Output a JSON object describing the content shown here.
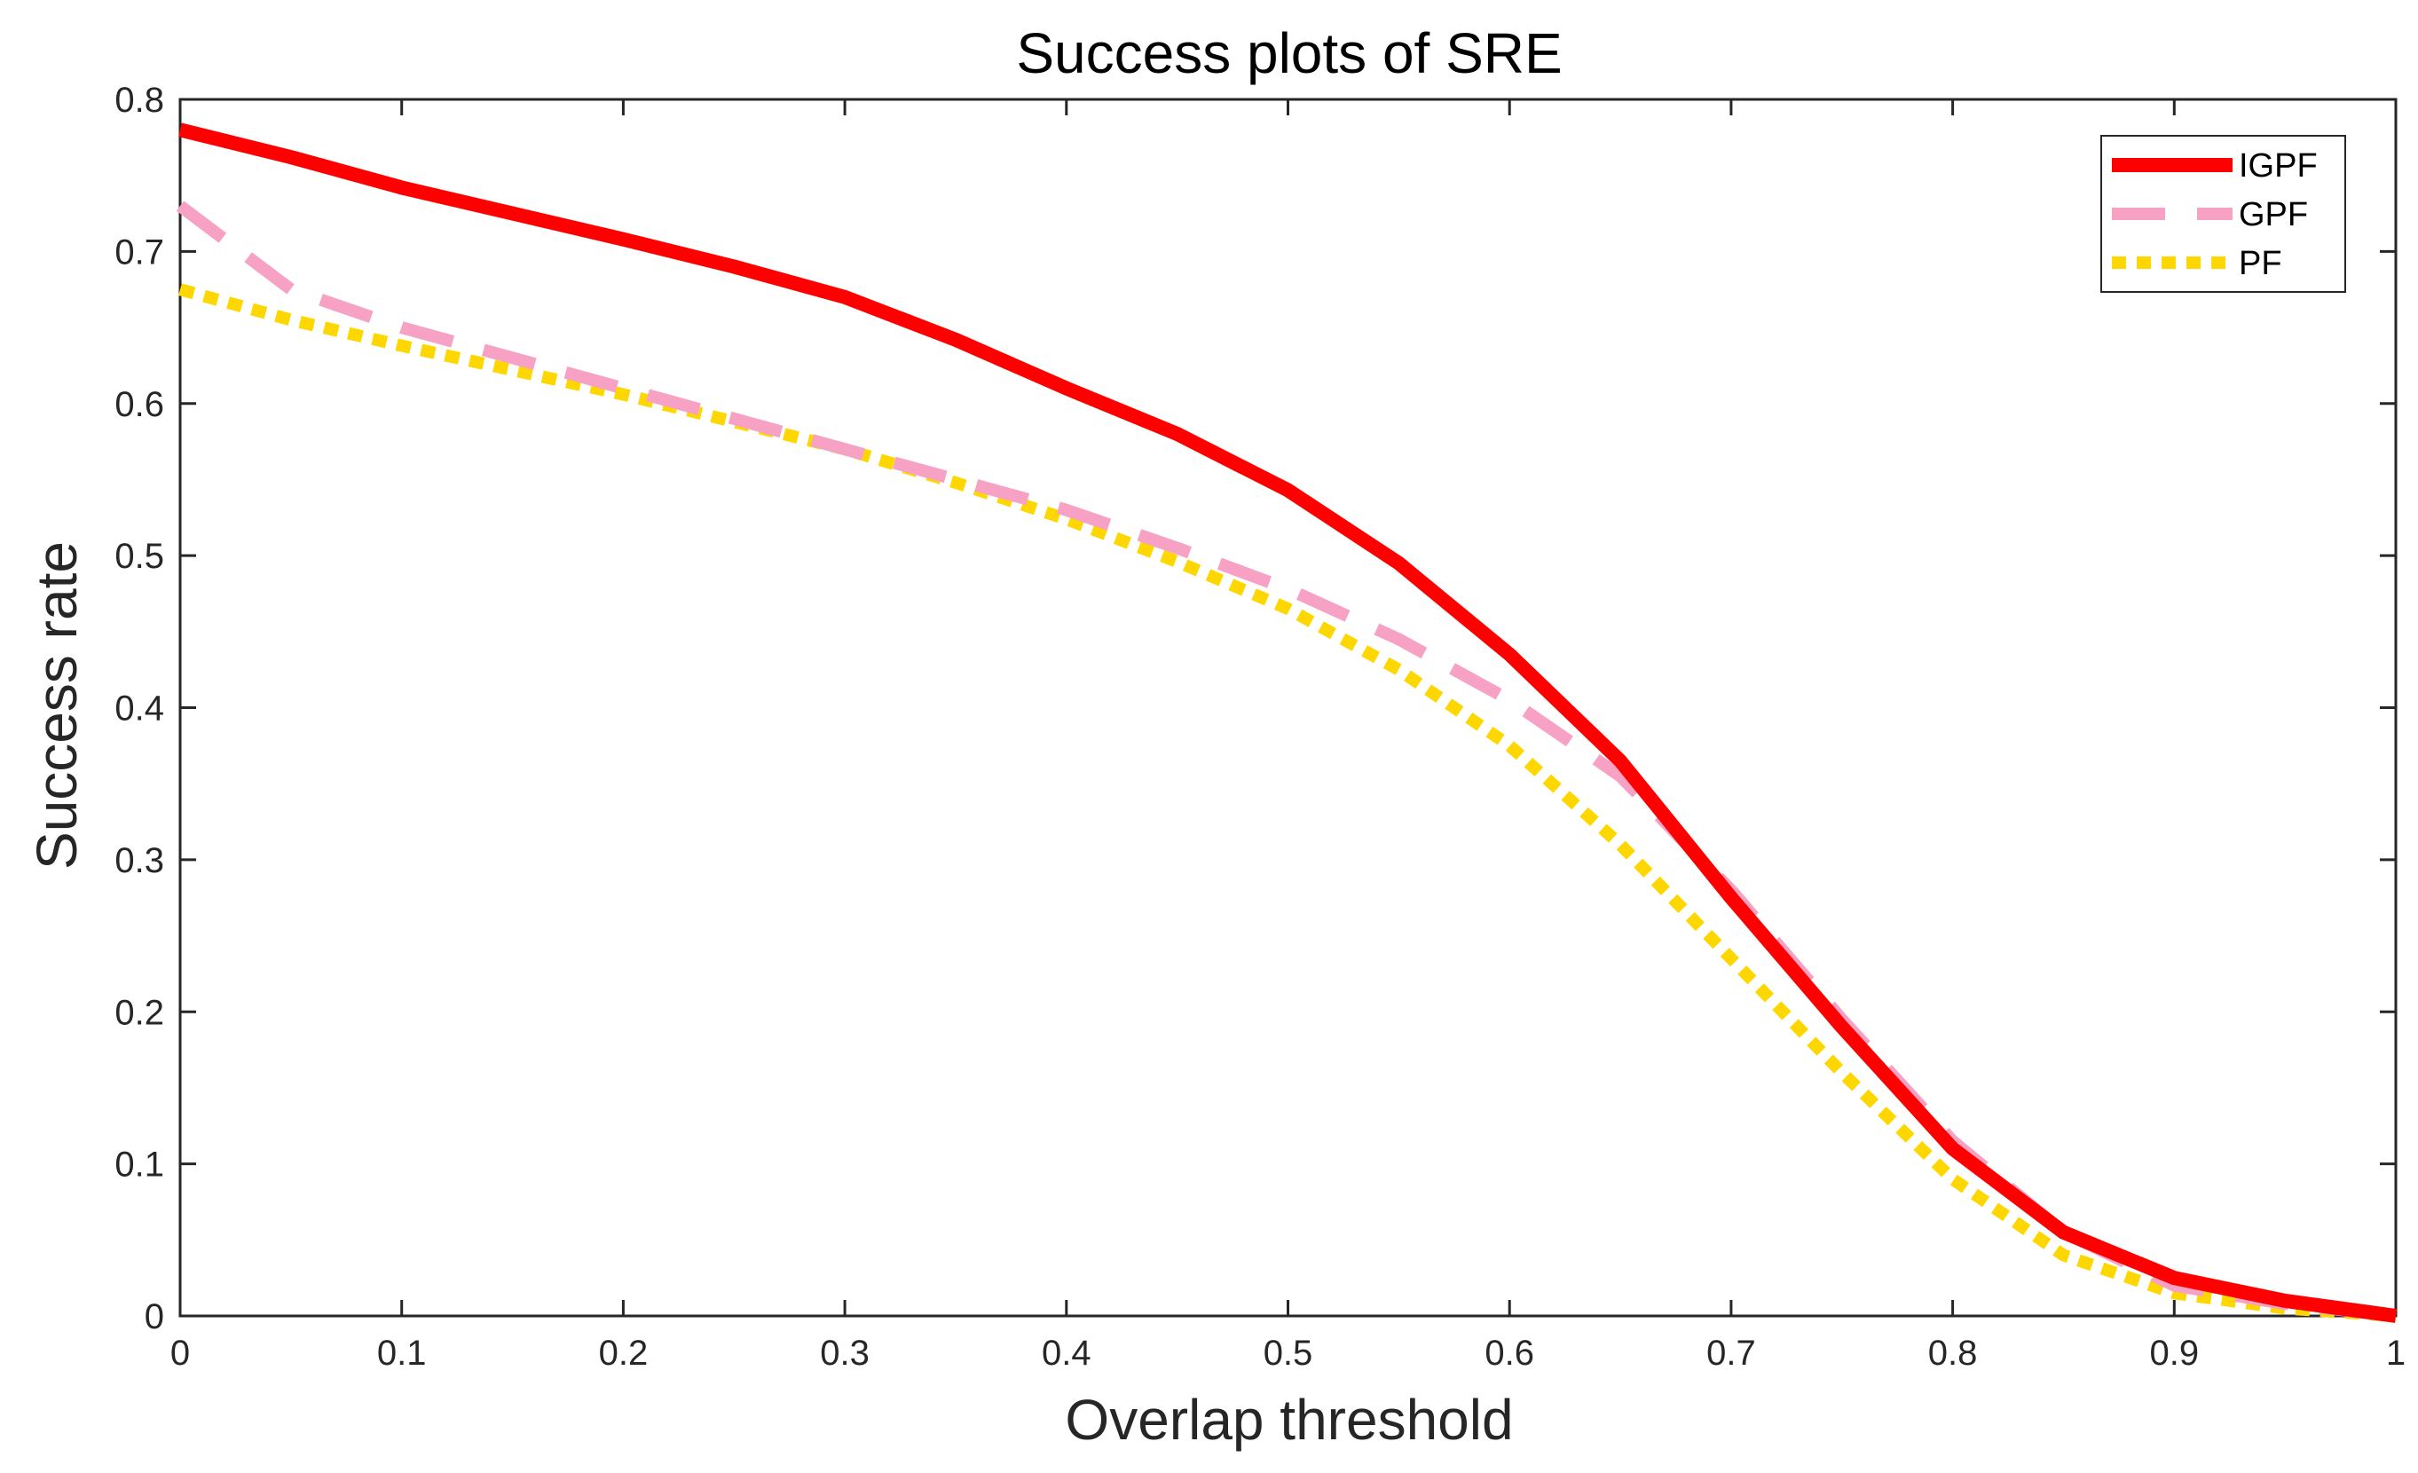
{
  "chart_data": {
    "type": "line",
    "title": "Success plots of SRE",
    "xlabel": "Overlap threshold",
    "ylabel": "Success rate",
    "xlim": [
      0,
      1
    ],
    "ylim": [
      0,
      0.8
    ],
    "xticks": [
      0,
      0.1,
      0.2,
      0.3,
      0.4,
      0.5,
      0.6,
      0.7,
      0.8,
      0.9,
      1
    ],
    "xtick_labels": [
      "0",
      "0.1",
      "0.2",
      "0.3",
      "0.4",
      "0.5",
      "0.6",
      "0.7",
      "0.8",
      "0.9",
      "1"
    ],
    "yticks": [
      0,
      0.1,
      0.2,
      0.3,
      0.4,
      0.5,
      0.6,
      0.7,
      0.8
    ],
    "ytick_labels": [
      "0",
      "0.1",
      "0.2",
      "0.3",
      "0.4",
      "0.5",
      "0.6",
      "0.7",
      "0.8"
    ],
    "grid": false,
    "legend_position": "top-right",
    "x": [
      0,
      0.05,
      0.1,
      0.15,
      0.2,
      0.25,
      0.3,
      0.35,
      0.4,
      0.45,
      0.5,
      0.55,
      0.6,
      0.65,
      0.7,
      0.75,
      0.8,
      0.85,
      0.9,
      0.95,
      1
    ],
    "series": [
      {
        "name": "IGPF",
        "color": "#ff0000",
        "style": "solid",
        "values": [
          0.78,
          0.762,
          0.742,
          0.725,
          0.708,
          0.69,
          0.67,
          0.642,
          0.61,
          0.58,
          0.543,
          0.495,
          0.435,
          0.365,
          0.275,
          0.19,
          0.11,
          0.055,
          0.025,
          0.01,
          0
        ]
      },
      {
        "name": "GPF",
        "color": "#f7a1c4",
        "style": "dashed",
        "values": [
          0.73,
          0.675,
          0.65,
          0.63,
          0.61,
          0.59,
          0.57,
          0.55,
          0.53,
          0.505,
          0.478,
          0.445,
          0.405,
          0.355,
          0.28,
          0.195,
          0.115,
          0.055,
          0.02,
          0.008,
          0
        ]
      },
      {
        "name": "PF",
        "color": "#ffd700",
        "style": "dotted",
        "values": [
          0.675,
          0.655,
          0.638,
          0.622,
          0.606,
          0.588,
          0.57,
          0.548,
          0.524,
          0.496,
          0.465,
          0.425,
          0.375,
          0.31,
          0.235,
          0.16,
          0.09,
          0.04,
          0.015,
          0.005,
          0
        ]
      }
    ]
  }
}
